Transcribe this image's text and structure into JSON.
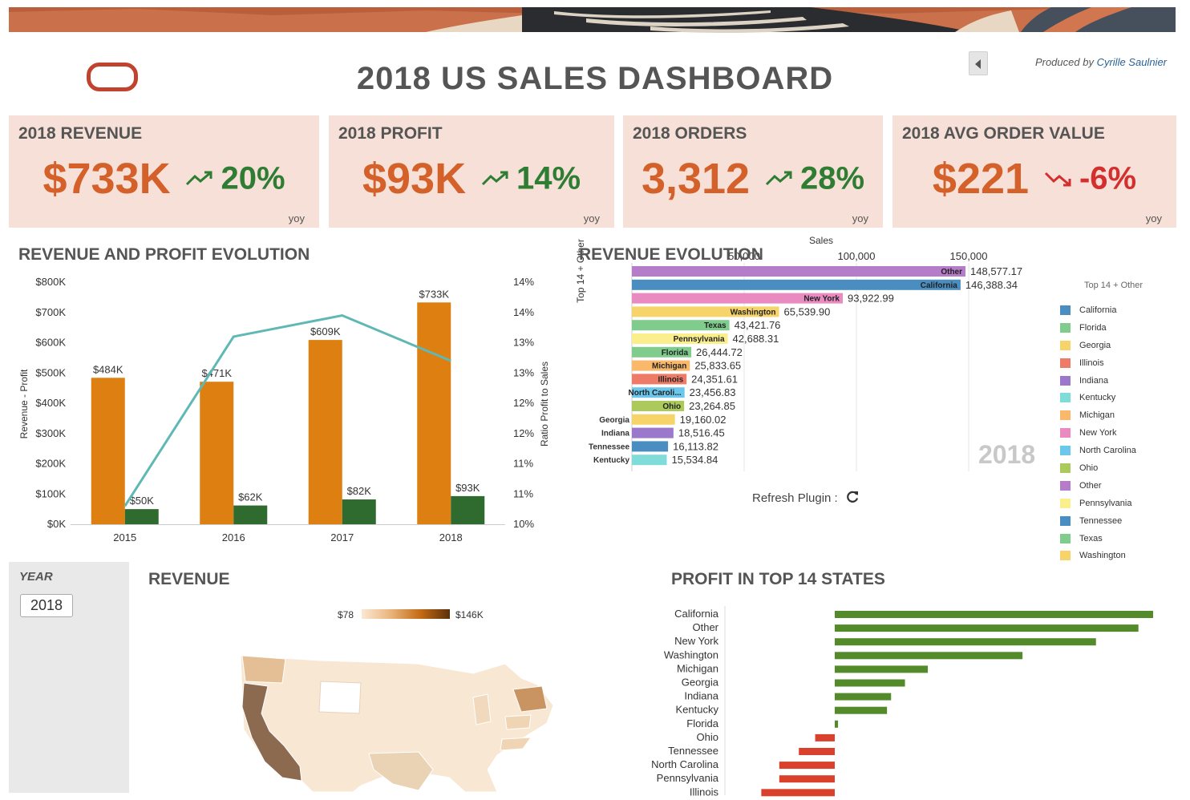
{
  "header": {
    "title": "2018 US SALES DASHBOARD",
    "credit_prefix": "Produced by",
    "credit_author": "Cyrille Saulnier"
  },
  "colors": {
    "accent": "#d4612a",
    "up": "#2e7d32",
    "down": "#d32f2f",
    "kpi_bg": "#f6e0d7",
    "revenue_bar": "#de7f11",
    "profit_bar": "#2f6b2f",
    "ratio_line": "#5fb8b4"
  },
  "kpis": [
    {
      "title": "2018 REVENUE",
      "value": "$733K",
      "change": "20%",
      "direction": "up",
      "icon": "trend-up-icon",
      "period": "yoy"
    },
    {
      "title": "2018 PROFIT",
      "value": "$93K",
      "change": "14%",
      "direction": "up",
      "icon": "trend-up-icon",
      "period": "yoy"
    },
    {
      "title": "2018 ORDERS",
      "value": "3,312",
      "change": "28%",
      "direction": "up",
      "icon": "trend-up-icon",
      "period": "yoy"
    },
    {
      "title": "2018 AVG ORDER VALUE",
      "value": "$221",
      "change": "-6%",
      "direction": "down",
      "icon": "trend-down-icon",
      "period": "yoy"
    }
  ],
  "rev_profit": {
    "title": "REVENUE AND PROFIT EVOLUTION",
    "y_left_label": "Revenue - Profit",
    "y_right_label": "Ratio Profit to Sales",
    "y_left_ticks": [
      "$0K",
      "$100K",
      "$200K",
      "$300K",
      "$400K",
      "$500K",
      "$600K",
      "$700K",
      "$800K"
    ],
    "y_right_ticks": [
      "10%",
      "11%",
      "11%",
      "12%",
      "12%",
      "13%",
      "13%",
      "14%",
      "14%"
    ]
  },
  "chart_data": [
    {
      "type": "bar",
      "title": "REVENUE AND PROFIT EVOLUTION",
      "categories": [
        "2015",
        "2016",
        "2017",
        "2018"
      ],
      "series": [
        {
          "name": "Revenue",
          "values": [
            484,
            471,
            609,
            733
          ],
          "labels": [
            "$484K",
            "$471K",
            "$609K",
            "$733K"
          ]
        },
        {
          "name": "Profit",
          "values": [
            50,
            62,
            82,
            93
          ],
          "labels": [
            "$50K",
            "$62K",
            "$82K",
            "$93K"
          ]
        },
        {
          "name": "Ratio Profit to Sales",
          "type": "line",
          "values": [
            10.3,
            13.1,
            13.45,
            12.7
          ]
        }
      ],
      "ylabel": "Revenue - Profit",
      "y2label": "Ratio Profit to Sales",
      "ylim": [
        0,
        800
      ],
      "y2lim": [
        10,
        14
      ]
    },
    {
      "type": "bar",
      "orientation": "horizontal",
      "title": "REVENUE EVOLUTION",
      "xlabel": "Sales",
      "ylabel": "Top 14 + Other",
      "x_ticks": [
        "50,000",
        "100,000",
        "150,000"
      ],
      "xlim": [
        0,
        150000
      ],
      "year_label": "2018",
      "categories": [
        "Other",
        "California",
        "New York",
        "Washington",
        "Texas",
        "Pennsylvania",
        "Florida",
        "Michigan",
        "Illinois",
        "North Caroli...",
        "Ohio",
        "Georgia",
        "Indiana",
        "Tennessee",
        "Kentucky"
      ],
      "values": [
        148577.17,
        146388.34,
        93922.99,
        65539.9,
        43421.76,
        42688.31,
        26444.72,
        25833.65,
        24351.61,
        23456.83,
        23264.85,
        19160.02,
        18516.45,
        16113.82,
        15534.84
      ],
      "value_labels": [
        "148,577.17",
        "146,388.34",
        "93,922.99",
        "65,539.90",
        "43,421.76",
        "42,688.31",
        "26,444.72",
        "25,833.65",
        "24,351.61",
        "23,456.83",
        "23,264.85",
        "19,160.02",
        "18,516.45",
        "16,113.82",
        "15,534.84"
      ],
      "colors": [
        "#b57cc9",
        "#4a8dc0",
        "#e98bc0",
        "#f6d46a",
        "#7fcc8d",
        "#fbee8c",
        "#7fcc8d",
        "#f9b86a",
        "#ee7b67",
        "#6cc7ec",
        "#acc95c",
        "#f6d46a",
        "#9b78cc",
        "#4a8dc0",
        "#7fdcd8"
      ],
      "legend": {
        "title": "Top 14 + Other",
        "placement": "right",
        "items": [
          {
            "name": "California",
            "color": "#4a8dc0"
          },
          {
            "name": "Florida",
            "color": "#7fcc8d"
          },
          {
            "name": "Georgia",
            "color": "#f6d46a"
          },
          {
            "name": "Illinois",
            "color": "#ee7b67"
          },
          {
            "name": "Indiana",
            "color": "#9b78cc"
          },
          {
            "name": "Kentucky",
            "color": "#7fdcd8"
          },
          {
            "name": "Michigan",
            "color": "#f9b86a"
          },
          {
            "name": "New York",
            "color": "#e98bc0"
          },
          {
            "name": "North Carolina",
            "color": "#6cc7ec"
          },
          {
            "name": "Ohio",
            "color": "#acc95c"
          },
          {
            "name": "Other",
            "color": "#b57cc9"
          },
          {
            "name": "Pennsylvania",
            "color": "#fbee8c"
          },
          {
            "name": "Tennessee",
            "color": "#4a8dc0"
          },
          {
            "name": "Texas",
            "color": "#7fcc8d"
          },
          {
            "name": "Washington",
            "color": "#f6d46a"
          }
        ]
      }
    },
    {
      "type": "bar",
      "orientation": "horizontal",
      "title": "PROFIT IN TOP 14 STATES",
      "categories": [
        "California",
        "Other",
        "New York",
        "Washington",
        "Michigan",
        "Georgia",
        "Indiana",
        "Kentucky",
        "Florida",
        "Ohio",
        "Tennessee",
        "North Carolina",
        "Pennsylvania",
        "Illinois"
      ],
      "values": [
        19500,
        18600,
        16000,
        11500,
        5700,
        4300,
        3450,
        3200,
        200,
        -1200,
        -2200,
        -3400,
        -3400,
        -4500
      ],
      "positive_color": "#538b2a",
      "negative_color": "#d9412d"
    }
  ],
  "revenue_evolution": {
    "title": "REVENUE EVOLUTION",
    "refresh_label": "Refresh Plugin :",
    "refresh_icon": "refresh-icon"
  },
  "filter": {
    "label": "YEAR",
    "value": "2018"
  },
  "revenue_map": {
    "title": "REVENUE",
    "legend_min": "$78",
    "legend_max": "$146K"
  },
  "profit_states": {
    "title": "PROFIT IN TOP 14 STATES"
  }
}
